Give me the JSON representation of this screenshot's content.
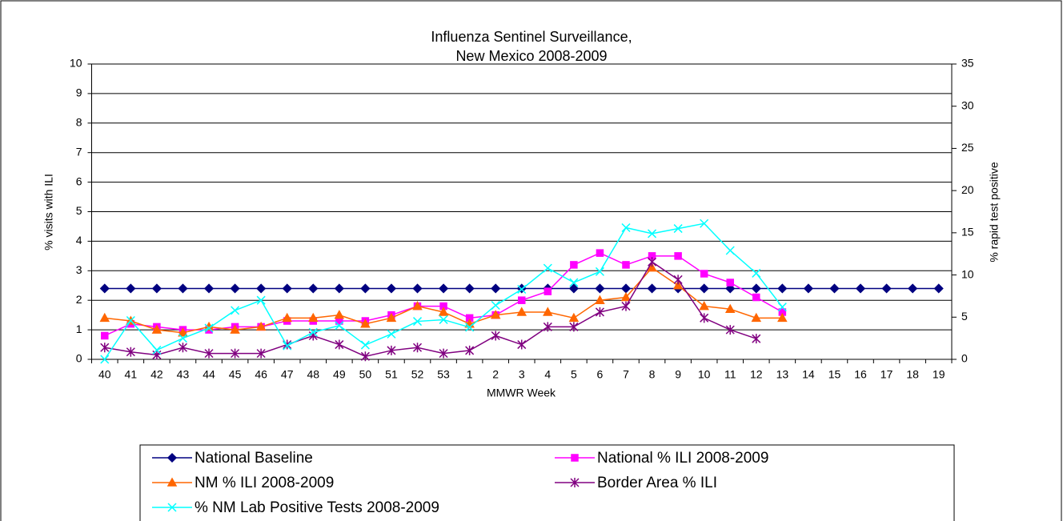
{
  "chart_data": {
    "type": "line",
    "title": [
      "Influenza Sentinel Surveillance,",
      "New Mexico 2008-2009"
    ],
    "x_label": "MMWR Week",
    "y_label": "% visits with ILI",
    "y2_label": "% rapid test positive",
    "categories": [
      "40",
      "41",
      "42",
      "43",
      "44",
      "45",
      "46",
      "47",
      "48",
      "49",
      "50",
      "51",
      "52",
      "53",
      "1",
      "2",
      "3",
      "4",
      "5",
      "6",
      "7",
      "8",
      "9",
      "10",
      "11",
      "12",
      "13",
      "14",
      "15",
      "16",
      "17",
      "18",
      "19"
    ],
    "ylim": [
      0,
      10
    ],
    "yticks": [
      0,
      1,
      2,
      3,
      4,
      5,
      6,
      7,
      8,
      9,
      10
    ],
    "y2lim": [
      0,
      35
    ],
    "y2ticks": [
      0,
      5,
      10,
      15,
      20,
      25,
      30,
      35
    ],
    "grid": true,
    "legend": "bottom",
    "series": [
      {
        "name": "National Baseline",
        "color": "#000080",
        "marker": "diamond",
        "values": [
          2.4,
          2.4,
          2.4,
          2.4,
          2.4,
          2.4,
          2.4,
          2.4,
          2.4,
          2.4,
          2.4,
          2.4,
          2.4,
          2.4,
          2.4,
          2.4,
          2.4,
          2.4,
          2.4,
          2.4,
          2.4,
          2.4,
          2.4,
          2.4,
          2.4,
          2.4,
          2.4,
          2.4,
          2.4,
          2.4,
          2.4,
          2.4,
          2.4
        ]
      },
      {
        "name": "National % ILI 2008-2009",
        "color": "#FF00FF",
        "marker": "square",
        "values": [
          0.8,
          1.2,
          1.1,
          1.0,
          1.0,
          1.1,
          1.1,
          1.3,
          1.3,
          1.3,
          1.3,
          1.5,
          1.8,
          1.8,
          1.4,
          1.5,
          2.0,
          2.3,
          3.2,
          3.6,
          3.2,
          3.5,
          3.5,
          2.9,
          2.6,
          2.1,
          1.6,
          null,
          null,
          null,
          null,
          null,
          null
        ]
      },
      {
        "name": "NM % ILI 2008-2009",
        "color": "#FF6600",
        "marker": "triangle",
        "values": [
          1.4,
          1.3,
          1.0,
          0.9,
          1.1,
          1.0,
          1.1,
          1.4,
          1.4,
          1.5,
          1.2,
          1.4,
          1.8,
          1.6,
          1.2,
          1.5,
          1.6,
          1.6,
          1.4,
          2.0,
          2.1,
          3.1,
          2.5,
          1.8,
          1.7,
          1.4,
          1.4,
          null,
          null,
          null,
          null,
          null,
          null
        ]
      },
      {
        "name": "Border Area % ILI",
        "color": "#800080",
        "marker": "star",
        "values": [
          0.4,
          0.25,
          0.15,
          0.4,
          0.2,
          0.2,
          0.2,
          0.5,
          0.8,
          0.5,
          0.1,
          0.3,
          0.4,
          0.2,
          0.3,
          0.8,
          0.5,
          1.1,
          1.1,
          1.6,
          1.8,
          3.3,
          2.7,
          1.4,
          1.0,
          0.7,
          null,
          null,
          null,
          null,
          null,
          null,
          null
        ]
      },
      {
        "name": "% NM Lab Positive Tests 2008-2009",
        "color": "#00FFFF",
        "marker": "x",
        "axis": "y2",
        "values": [
          0,
          4.6,
          1.1,
          2.5,
          3.7,
          5.8,
          7.0,
          1.6,
          3.2,
          4.0,
          1.7,
          3.0,
          4.5,
          4.7,
          3.8,
          6.4,
          8.3,
          10.8,
          9.1,
          10.4,
          15.6,
          14.9,
          15.5,
          16.1,
          12.9,
          10.2,
          6.2,
          null,
          null,
          null,
          null,
          null,
          null
        ]
      }
    ]
  }
}
